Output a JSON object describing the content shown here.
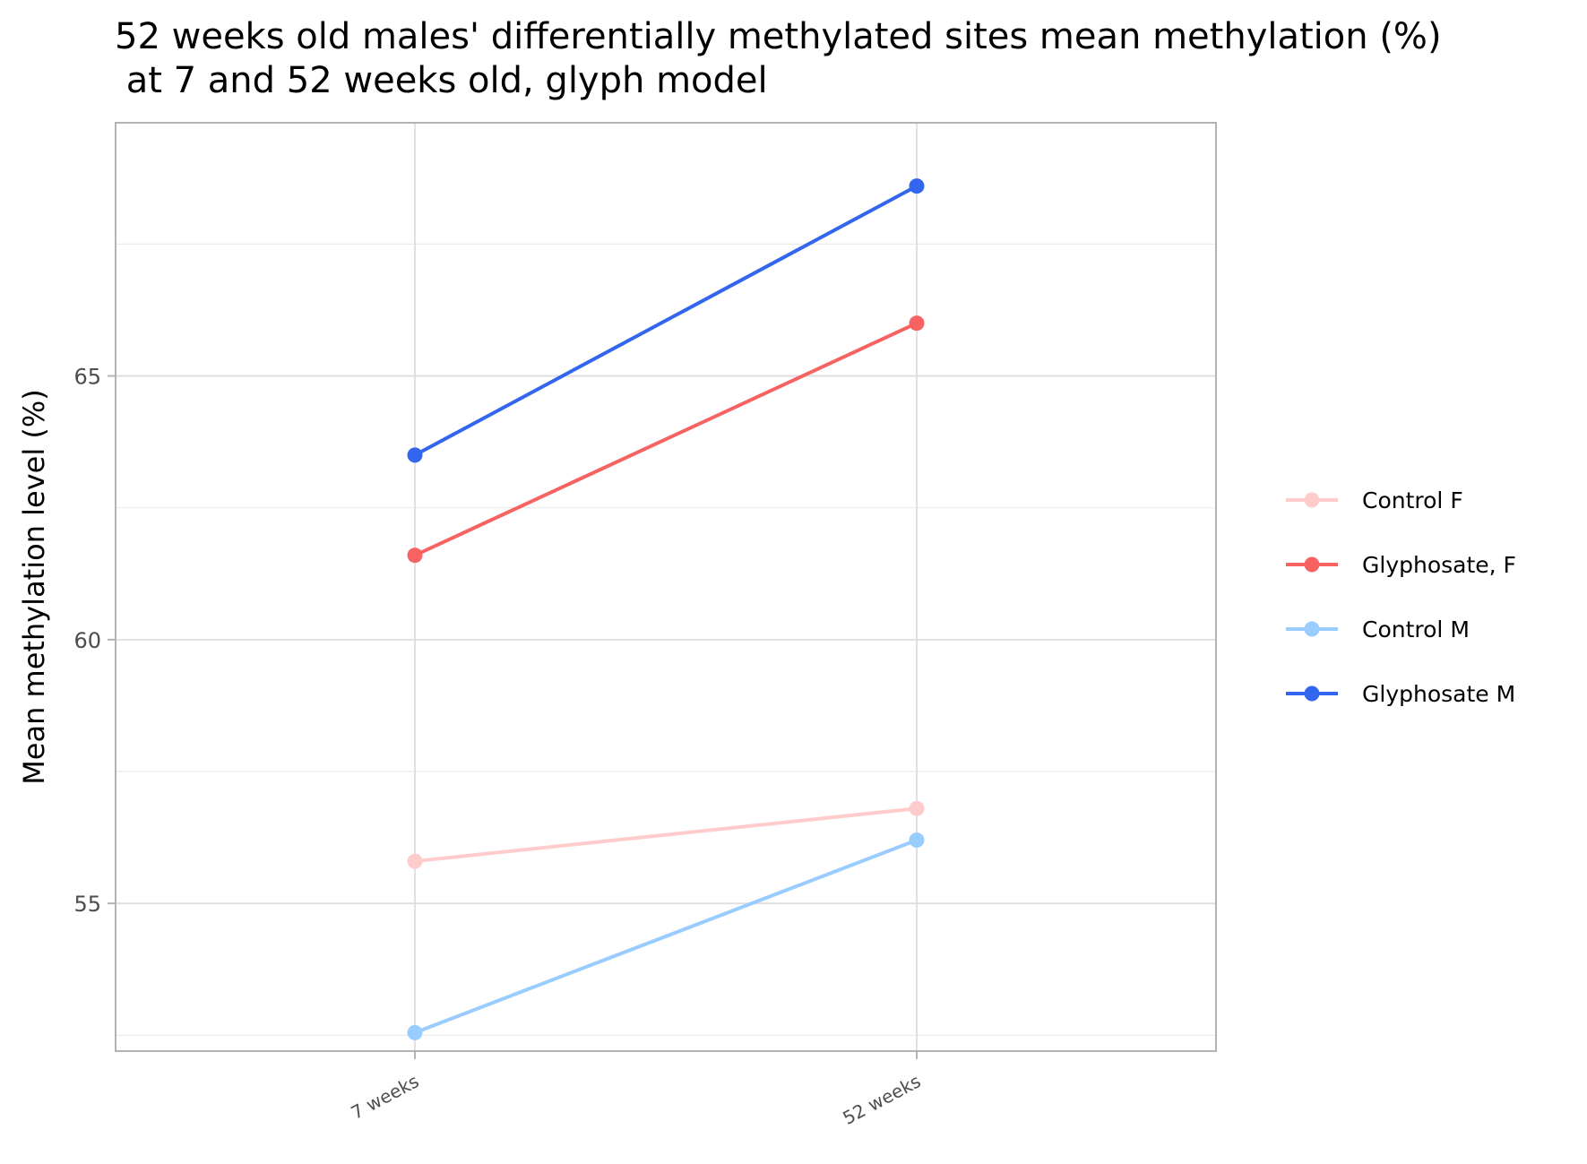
{
  "chart_data": {
    "type": "line",
    "title_line1": "52 weeks old males' differentially methylated sites mean methylation (%)",
    "title_line2": " at 7 and 52 weeks old, glyph model",
    "xlabel": "",
    "ylabel": "Mean methylation level (%)",
    "categories": [
      "7 weeks",
      "52 weeks"
    ],
    "ylim": [
      52.2,
      69.8
    ],
    "yticks": [
      55,
      60,
      65
    ],
    "ytick_labels": [
      "55",
      "60",
      "65"
    ],
    "grid": true,
    "legend_position": "right",
    "series": [
      {
        "name": "Control F",
        "color": "#ffcccc",
        "values": [
          55.8,
          56.8
        ]
      },
      {
        "name": "Glyphosate, F",
        "color": "#f76363",
        "values": [
          61.6,
          66.0
        ]
      },
      {
        "name": "Control M",
        "color": "#99ccff",
        "values": [
          52.55,
          56.2
        ]
      },
      {
        "name": "Glyphosate M",
        "color": "#3366ee",
        "values": [
          63.5,
          68.6
        ]
      }
    ]
  }
}
